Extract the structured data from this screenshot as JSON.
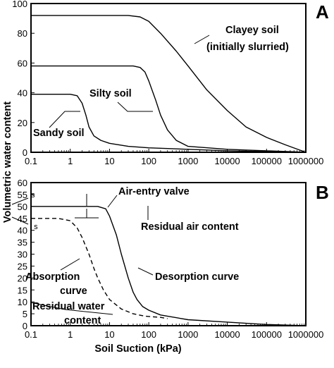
{
  "chart_data": [
    {
      "type": "line",
      "panel_label": "A",
      "xscale": "log",
      "xlim": [
        0.1,
        1000000
      ],
      "ylim": [
        0,
        100
      ],
      "xticks": [
        "0.1",
        "1",
        "10",
        "100",
        "1000",
        "10000",
        "100000",
        "1000000"
      ],
      "yticks": [
        "0",
        "20",
        "40",
        "60",
        "80",
        "100"
      ],
      "grid": false,
      "annotations": [
        "Clayey soil",
        "(initially slurried)",
        "Silty soil",
        "Sandy soil"
      ],
      "series": [
        {
          "name": "Clayey soil",
          "x": [
            0.1,
            1,
            10,
            30,
            60,
            100,
            200,
            500,
            1000,
            3000,
            10000,
            30000,
            100000,
            300000,
            1000000
          ],
          "y": [
            92,
            92,
            92,
            92,
            91,
            88,
            80,
            68,
            58,
            42,
            28,
            17,
            10,
            5,
            0
          ]
        },
        {
          "name": "Silty soil",
          "x": [
            0.1,
            1,
            10,
            40,
            60,
            80,
            100,
            150,
            200,
            300,
            500,
            1000,
            10000,
            100000,
            1000000
          ],
          "y": [
            58,
            58,
            58,
            58,
            57,
            54,
            48,
            35,
            25,
            15,
            8,
            4,
            2,
            1,
            0
          ]
        },
        {
          "name": "Sandy soil",
          "x": [
            0.1,
            1,
            1.5,
            2,
            2.5,
            3,
            4,
            6,
            10,
            30,
            100,
            1000,
            10000,
            100000,
            1000000
          ],
          "y": [
            39,
            39,
            38,
            33,
            25,
            17,
            11,
            8,
            6,
            4,
            3,
            2,
            1,
            0.5,
            0
          ]
        }
      ]
    },
    {
      "type": "line",
      "panel_label": "B",
      "xscale": "log",
      "xlim": [
        0.1,
        1000000
      ],
      "ylim": [
        0,
        60
      ],
      "xlabel": "Soil Suction (kPa)",
      "xticks": [
        "0.1",
        "1",
        "10",
        "100",
        "1000",
        "10000",
        "100000",
        "1000000"
      ],
      "yticks": [
        "0",
        "5",
        "10",
        "15",
        "20",
        "25",
        "30",
        "35",
        "40",
        "45",
        "50",
        "55",
        "60"
      ],
      "grid": false,
      "annotations": [
        "Air-entry valve",
        "Residual air content",
        "Desorption curve",
        "Absorption",
        "curve",
        "Residual water",
        "content"
      ],
      "symbols": [
        "s",
        "' s"
      ],
      "series": [
        {
          "name": "Desorption curve",
          "style": "solid",
          "x": [
            0.1,
            1,
            5,
            8,
            10,
            15,
            20,
            30,
            40,
            50,
            70,
            100,
            200,
            1000,
            10000,
            100000,
            1000000
          ],
          "y": [
            50,
            50,
            50,
            49,
            46,
            38,
            30,
            20,
            14,
            11,
            8,
            6.5,
            4.5,
            2.5,
            1.5,
            0.5,
            0
          ]
        },
        {
          "name": "Absorption curve",
          "style": "dashed",
          "x": [
            0.1,
            0.5,
            1,
            1.5,
            2,
            3,
            4,
            5,
            7,
            10,
            20,
            40,
            80,
            200,
            300
          ],
          "y": [
            45,
            45,
            44,
            41,
            37,
            30,
            24,
            20,
            15,
            11,
            7,
            5,
            4,
            3.5,
            3
          ]
        }
      ]
    }
  ],
  "y_axis_label": "Volumetric water content"
}
